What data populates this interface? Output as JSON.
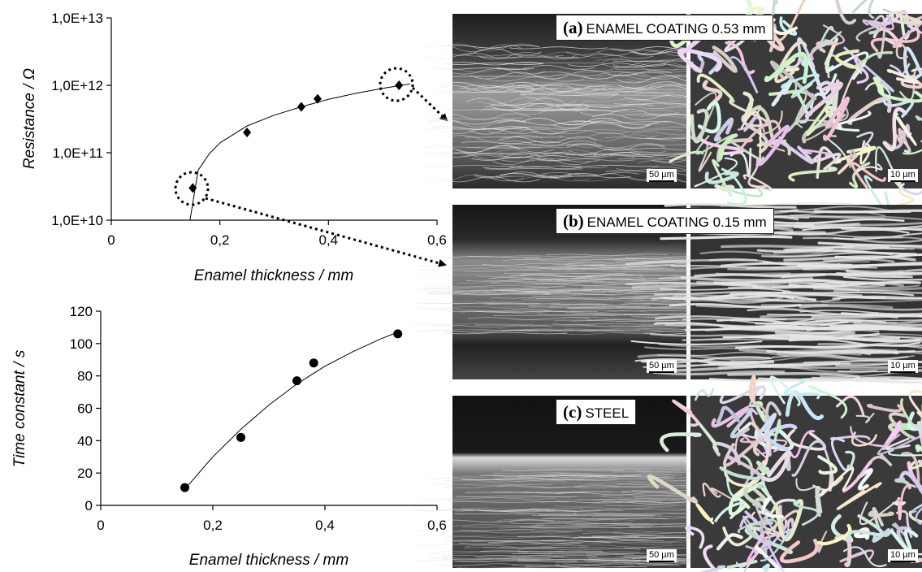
{
  "chart_data": [
    {
      "type": "scatter",
      "xlabel": "Enamel thickness / mm",
      "ylabel": "Resistance / Ω",
      "xlim": [
        0,
        0.6
      ],
      "ylim": [
        10000000000,
        10000000000000
      ],
      "yscale": "log",
      "x_ticks": [
        "0",
        "0,2",
        "0,4",
        "0,6"
      ],
      "y_ticks": [
        "1,0E+10",
        "1,0E+11",
        "1,0E+12",
        "1,0E+13"
      ],
      "marker": "diamond",
      "grid": false,
      "series": [
        {
          "x": [
            0.15,
            0.25,
            0.35,
            0.38,
            0.53
          ],
          "y": [
            30000000000,
            200000000000,
            480000000000,
            630000000000,
            1000000000000
          ]
        }
      ],
      "fit_curve": {
        "x": [
          0.145,
          0.16,
          0.18,
          0.2,
          0.25,
          0.3,
          0.35,
          0.4,
          0.45,
          0.5,
          0.55
        ],
        "y": [
          10000000000,
          55000000000,
          95000000000,
          140000000000,
          250000000000,
          360000000000,
          480000000000,
          620000000000,
          760000000000,
          900000000000,
          1050000000000
        ]
      }
    },
    {
      "type": "scatter",
      "xlabel": "Enamel thickness / mm",
      "ylabel": "Time constant / s",
      "xlim": [
        0,
        0.6
      ],
      "ylim": [
        0,
        120
      ],
      "x_ticks": [
        "0",
        "0,2",
        "0,4",
        "0,6"
      ],
      "y_ticks": [
        "0",
        "20",
        "40",
        "60",
        "80",
        "100",
        "120"
      ],
      "marker": "circle",
      "grid": false,
      "series": [
        {
          "x": [
            0.15,
            0.25,
            0.35,
            0.38,
            0.53
          ],
          "y": [
            11,
            42,
            77,
            88,
            106
          ]
        }
      ],
      "fit_curve": {
        "x": [
          0.15,
          0.2,
          0.25,
          0.3,
          0.35,
          0.4,
          0.45,
          0.5,
          0.53
        ],
        "y": [
          10,
          30,
          47,
          62,
          75,
          86,
          95,
          103,
          107
        ]
      }
    }
  ],
  "micrographs": {
    "panels": [
      {
        "caption_letter": "(a)",
        "caption_text": "ENAMEL COATING 0.53 mm",
        "scale_left": "50 µm",
        "scale_right": "10 µm"
      },
      {
        "caption_letter": "(b)",
        "caption_text": "ENAMEL COATING 0.15 mm",
        "scale_left": "50 µm",
        "scale_right": "10 µm"
      },
      {
        "caption_letter": "(c)",
        "caption_text": "STEEL",
        "scale_left": "50 µm",
        "scale_right": "10 µm"
      }
    ]
  },
  "colors": {
    "micrograph_dark": "#1a1a1a",
    "micrograph_light": "#d8d8d8",
    "marker": "#000000"
  }
}
